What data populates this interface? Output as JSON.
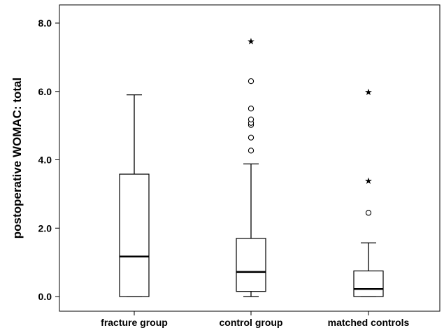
{
  "chart_data": {
    "type": "box",
    "title": "",
    "xlabel": "",
    "ylabel": "postoperative WOMAC: total",
    "ylim": [
      -0.2,
      8.2
    ],
    "yticks": [
      0.0,
      2.0,
      4.0,
      6.0,
      8.0
    ],
    "ytick_labels": [
      "0.0",
      "2.0",
      "4.0",
      "6.0",
      "8.0"
    ],
    "grid": false,
    "categories": [
      "fracture group",
      "control group",
      "matched controls"
    ],
    "boxes": [
      {
        "category": "fracture group",
        "whisker_low": 0.0,
        "q1": 0.0,
        "median": 1.17,
        "q3": 3.58,
        "whisker_high": 5.9,
        "outliers": [],
        "extremes": []
      },
      {
        "category": "control group",
        "whisker_low": 0.0,
        "q1": 0.15,
        "median": 0.72,
        "q3": 1.7,
        "whisker_high": 3.88,
        "outliers": [
          4.27,
          4.65,
          5.02,
          5.08,
          5.18,
          5.5,
          6.3
        ],
        "extremes": [
          7.48
        ]
      },
      {
        "category": "matched controls",
        "whisker_low": 0.0,
        "q1": 0.0,
        "median": 0.22,
        "q3": 0.75,
        "whisker_high": 1.57,
        "outliers": [
          2.45
        ],
        "extremes": [
          3.4,
          6.0
        ]
      }
    ]
  }
}
